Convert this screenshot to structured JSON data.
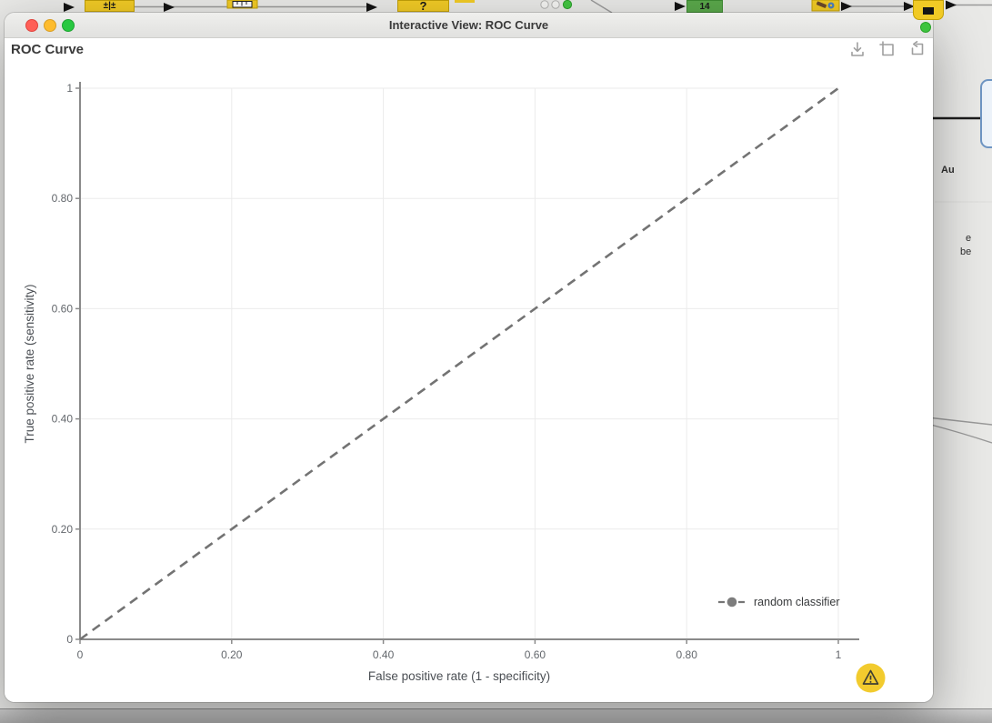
{
  "desktop": {
    "nodes": {
      "normalizer_icon": "±|±",
      "rule_icon": "?",
      "green_badge": "14"
    },
    "annotation": {
      "label_fragment": "Au",
      "line1_fragment": "e",
      "line2_fragment": "be"
    }
  },
  "window": {
    "title": "Interactive View: ROC Curve",
    "header_title": "ROC Curve",
    "toolbar_icons": [
      "download-icon",
      "fit-to-view-icon",
      "reset-view-icon"
    ],
    "traffic_lights": [
      "close",
      "minimize",
      "zoom"
    ]
  },
  "chart_data": {
    "type": "line",
    "title": "ROC Curve",
    "xlabel": "False positive rate (1 - specificity)",
    "ylabel": "True positive rate (sensitivity)",
    "xlim": [
      0,
      1
    ],
    "ylim": [
      0,
      1
    ],
    "xticks": [
      {
        "v": 0,
        "label": "0"
      },
      {
        "v": 0.2,
        "label": "0.20"
      },
      {
        "v": 0.4,
        "label": "0.40"
      },
      {
        "v": 0.6,
        "label": "0.60"
      },
      {
        "v": 0.8,
        "label": "0.80"
      },
      {
        "v": 1,
        "label": "1"
      }
    ],
    "yticks": [
      {
        "v": 0,
        "label": "0"
      },
      {
        "v": 0.2,
        "label": "0.20"
      },
      {
        "v": 0.4,
        "label": "0.40"
      },
      {
        "v": 0.6,
        "label": "0.60"
      },
      {
        "v": 0.8,
        "label": "0.80"
      },
      {
        "v": 1,
        "label": "1"
      }
    ],
    "grid": true,
    "legend": {
      "position": "inside-bottom-right",
      "entries": [
        {
          "label": "random classifier",
          "color": "#757575",
          "marker": "point-on-dashed-line"
        }
      ]
    },
    "series": [
      {
        "name": "random classifier",
        "x": [
          0,
          1
        ],
        "y": [
          0,
          1
        ],
        "color": "#737373",
        "width": 2.6,
        "dash": [
          10,
          7
        ],
        "style": "dashed"
      }
    ]
  },
  "colors": {
    "node_yellow": "#F1CA25",
    "node_green": "#5AA84B",
    "warning_badge": "#F2CB2E",
    "close_light": "#FF5F57",
    "minimize_light": "#FEBC2E",
    "zoom_light": "#28C840",
    "annotation_border": "#6F96C4"
  }
}
